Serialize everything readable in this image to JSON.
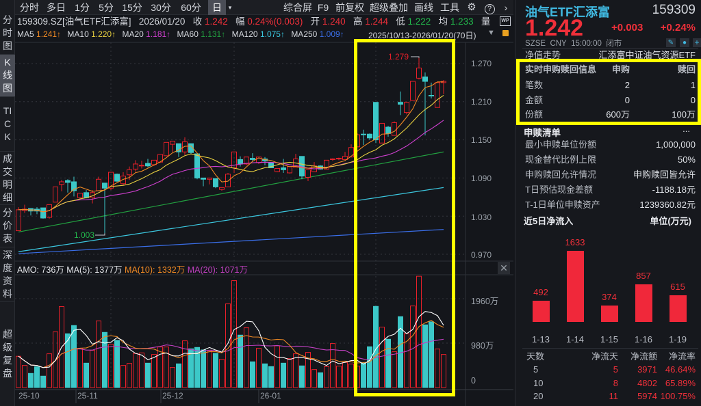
{
  "sidebar": {
    "items": [
      "分时图",
      "K线图",
      "TICK",
      "成交明细",
      "分价表",
      "深度资料",
      "超级复盘"
    ],
    "active": 1
  },
  "toolbar": {
    "periods": [
      "分时",
      "多日",
      "1分",
      "5分",
      "15分",
      "30分",
      "60分",
      "日"
    ],
    "selected_period": "日",
    "tools": [
      "综合屏",
      "F9",
      "前复权",
      "超级叠加",
      "画线",
      "工具"
    ]
  },
  "info": {
    "symbol": "159309.SZ[油气ETF汇添富]",
    "date": "2026/01/20",
    "close_label": "收",
    "close": "1.242",
    "change_label": "幅",
    "change": "0.24%(0.003)",
    "open_label": "开",
    "open": "1.240",
    "high_label": "高",
    "high": "1.244",
    "low_label": "低",
    "low": "1.222",
    "avg_label": "均",
    "avg": "1.233",
    "volume_label": "量"
  },
  "ma_row": {
    "items": [
      {
        "label": "MA5",
        "value": "1.241↑",
        "color": "#f08a24"
      },
      {
        "label": "MA10",
        "value": "1.220↑",
        "color": "#e8d040"
      },
      {
        "label": "MA20",
        "value": "1.181↑",
        "color": "#d040d0"
      },
      {
        "label": "MA60",
        "value": "1.131↑",
        "color": "#22a040"
      },
      {
        "label": "MA120",
        "value": "1.075↑",
        "color": "#3cc8e0"
      },
      {
        "label": "MA250",
        "value": "1.009↑",
        "color": "#3a6ee8"
      }
    ],
    "range": "2025/10/13-2026/01/20(70日)"
  },
  "volume_header": {
    "amo": "AMO: 736万",
    "ma5": "MA(5): 1377万",
    "ma10": "MA(10): 1332万",
    "ma20": "MA(20): 1071万"
  },
  "chart_data": {
    "type": "candlestick",
    "price_ticks": [
      "1.270",
      "1.210",
      "1.150",
      "1.090",
      "1.030",
      "0.970"
    ],
    "price_range": [
      0.97,
      1.27
    ],
    "volume_ticks": [
      "1960万",
      "980万",
      "0"
    ],
    "x_labels": [
      "25-10",
      "25-11",
      "25-12",
      "26-01"
    ],
    "annotations": {
      "max": "1.279",
      "min": "1.003"
    },
    "ohlc": [
      [
        1.007,
        1.044,
        1.007,
        1.04
      ],
      [
        1.039,
        1.048,
        1.035,
        1.041
      ],
      [
        1.042,
        1.042,
        1.031,
        1.038
      ],
      [
        1.041,
        1.044,
        1.033,
        1.038
      ],
      [
        1.043,
        1.043,
        1.026,
        1.027
      ],
      [
        1.028,
        1.048,
        1.026,
        1.048
      ],
      [
        1.052,
        1.076,
        1.052,
        1.076
      ],
      [
        1.08,
        1.087,
        1.069,
        1.084
      ],
      [
        1.086,
        1.088,
        1.067,
        1.083
      ],
      [
        1.084,
        1.092,
        1.061,
        1.07
      ],
      [
        1.059,
        1.066,
        1.057,
        1.066
      ],
      [
        1.067,
        1.071,
        1.058,
        1.059
      ],
      [
        1.059,
        1.071,
        1.05,
        1.067
      ],
      [
        1.07,
        1.092,
        1.069,
        1.088
      ],
      [
        1.082,
        1.082,
        1.003,
        1.074
      ],
      [
        1.074,
        1.099,
        1.071,
        1.099
      ],
      [
        1.096,
        1.097,
        1.084,
        1.085
      ],
      [
        1.081,
        1.099,
        1.078,
        1.093
      ],
      [
        1.095,
        1.108,
        1.087,
        1.103
      ],
      [
        1.104,
        1.118,
        1.1,
        1.112
      ],
      [
        1.109,
        1.117,
        1.105,
        1.11
      ],
      [
        1.113,
        1.12,
        1.107,
        1.109
      ],
      [
        1.111,
        1.118,
        1.109,
        1.118
      ],
      [
        1.115,
        1.127,
        1.114,
        1.127
      ],
      [
        1.125,
        1.146,
        1.125,
        1.146
      ],
      [
        1.143,
        1.148,
        1.131,
        1.148
      ],
      [
        1.144,
        1.144,
        1.123,
        1.131
      ],
      [
        1.131,
        1.154,
        1.126,
        1.147
      ],
      [
        1.144,
        1.144,
        1.127,
        1.13
      ],
      [
        1.128,
        1.128,
        1.088,
        1.09
      ],
      [
        1.09,
        1.09,
        1.077,
        1.088
      ],
      [
        1.088,
        1.09,
        1.08,
        1.09
      ],
      [
        1.089,
        1.089,
        1.074,
        1.076
      ],
      [
        1.072,
        1.075,
        1.07,
        1.075
      ],
      [
        1.076,
        1.098,
        1.076,
        1.096
      ],
      [
        1.106,
        1.131,
        1.098,
        1.131
      ],
      [
        1.119,
        1.124,
        1.108,
        1.112
      ],
      [
        1.112,
        1.123,
        1.11,
        1.123
      ],
      [
        1.121,
        1.129,
        1.116,
        1.119
      ],
      [
        1.114,
        1.123,
        1.112,
        1.123
      ],
      [
        1.12,
        1.123,
        1.11,
        1.117
      ],
      [
        1.114,
        1.114,
        1.106,
        1.106
      ],
      [
        1.1,
        1.105,
        1.099,
        1.105
      ],
      [
        1.106,
        1.12,
        1.098,
        1.103
      ],
      [
        1.098,
        1.108,
        1.097,
        1.108
      ],
      [
        1.107,
        1.128,
        1.107,
        1.12
      ],
      [
        1.124,
        1.124,
        1.088,
        1.093
      ],
      [
        1.091,
        1.103,
        1.085,
        1.103
      ],
      [
        1.1,
        1.115,
        1.1,
        1.109
      ],
      [
        1.109,
        1.11,
        1.103,
        1.104
      ],
      [
        1.104,
        1.118,
        1.104,
        1.118
      ],
      [
        1.119,
        1.121,
        1.117,
        1.12
      ],
      [
        1.12,
        1.122,
        1.118,
        1.121
      ],
      [
        1.119,
        1.131,
        1.119,
        1.124
      ],
      [
        1.123,
        1.143,
        1.123,
        1.138
      ],
      [
        1.139,
        1.16,
        1.139,
        1.158
      ],
      [
        1.159,
        1.166,
        1.142,
        1.158
      ],
      [
        1.159,
        1.16,
        1.15,
        1.153
      ],
      [
        1.209,
        1.209,
        1.145,
        1.15
      ],
      [
        1.145,
        1.176,
        1.145,
        1.176
      ],
      [
        1.17,
        1.172,
        1.155,
        1.16
      ],
      [
        1.157,
        1.179,
        1.157,
        1.177
      ],
      [
        1.209,
        1.226,
        1.189,
        1.206
      ],
      [
        1.193,
        1.21,
        1.19,
        1.209
      ],
      [
        1.212,
        1.242,
        1.212,
        1.242
      ],
      [
        1.247,
        1.279,
        1.245,
        1.263
      ],
      [
        1.249,
        1.256,
        1.157,
        1.242
      ],
      [
        1.22,
        1.24,
        1.215,
        1.219
      ],
      [
        1.201,
        1.24,
        1.201,
        1.24
      ],
      [
        1.24,
        1.244,
        1.222,
        1.242
      ]
    ],
    "volume_wan": [
      690,
      488,
      312,
      458,
      252,
      745,
      1228,
      1786,
      1187,
      1368,
      865,
      538,
      820,
      1469,
      1217,
      956,
      1041,
      488,
      533,
      750,
      765,
      538,
      729,
      895,
      895,
      443,
      523,
      1031,
      855,
      885,
      830,
      815,
      755,
      624,
      1846,
      2359,
      1157,
      1318,
      568,
      865,
      523,
      463,
      920,
      538,
      639,
      745,
      478,
      775,
      397,
      327,
      463,
      971,
      473,
      553,
      518,
      473,
      553,
      900,
      1790,
      1333,
      1066,
      790,
      1564,
      1192,
      1800,
      2455,
      1383,
      1449,
      850,
      729
    ],
    "long_ma": {
      "ma60": [
        1.005,
        1.131
      ],
      "ma120": [
        0.974,
        1.075
      ],
      "ma250": [
        0.971,
        1.009
      ]
    },
    "colors": {
      "up": "#e8202a",
      "down": "#3cc8c8"
    }
  },
  "quote": {
    "name": "油气ETF汇添富",
    "code": "159309",
    "price": "1.242",
    "change": "+0.003",
    "change_pct": "+0.24%",
    "exchange": "SZSE",
    "currency": "CNY",
    "time": "15:00:00",
    "status": "闭市"
  },
  "nav": {
    "label": "净值走势",
    "fund_name": "汇添富中证油气资源ETF"
  },
  "realtime": {
    "header": [
      "实时申购赎回信息",
      "申购",
      "赎回"
    ],
    "rows": [
      [
        "笔数",
        "2",
        "1"
      ],
      [
        "金额",
        "0",
        "0"
      ],
      [
        "份额",
        "600万",
        "100万"
      ]
    ]
  },
  "list": {
    "title": "申赎清单",
    "more": "...",
    "rows": [
      [
        "最小申赎单位份额",
        "1,000,000"
      ],
      [
        "现金替代比例上限",
        "50%"
      ],
      [
        "申购赎回允许情况",
        "申购赎回皆允许"
      ],
      [
        "T日预估现金差额",
        "-1188.18元"
      ],
      [
        "T-1日单位申赎资产",
        "1239360.82元"
      ]
    ]
  },
  "netflow": {
    "title": "近5日净流入",
    "unit": "单位(万元)",
    "dates": [
      "1-13",
      "1-14",
      "1-15",
      "1-16",
      "1-19"
    ],
    "values": [
      492,
      1633,
      374,
      857,
      615
    ],
    "value_labels": [
      "492",
      "1633",
      "374",
      "857",
      "615"
    ],
    "table_header": [
      "天数",
      "净流天",
      "净流额",
      "净流率"
    ],
    "table_rows": [
      [
        "5",
        "5",
        "3971",
        "46.64%"
      ],
      [
        "10",
        "8",
        "4802",
        "65.89%"
      ],
      [
        "20",
        "11",
        "5974",
        "100.75%"
      ]
    ]
  }
}
